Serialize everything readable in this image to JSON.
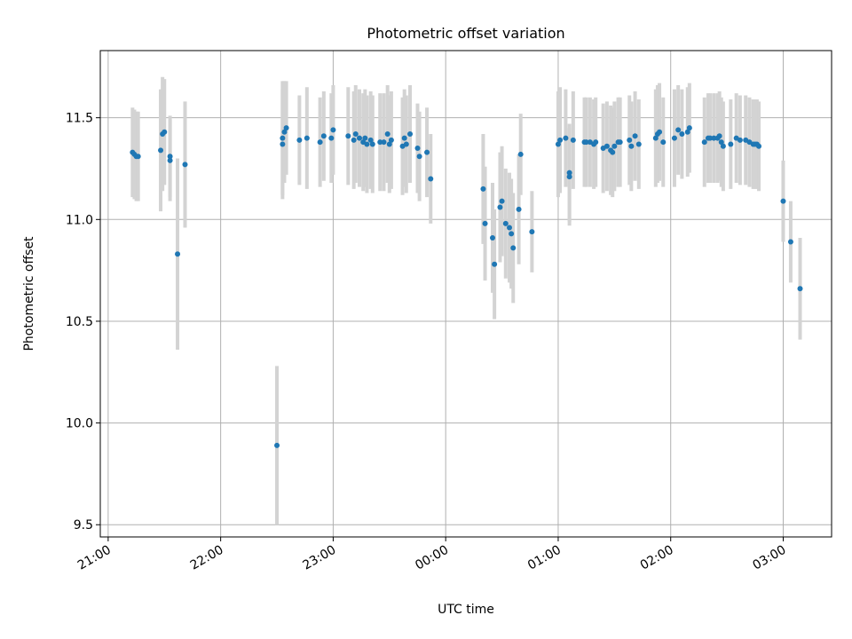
{
  "chart_data": {
    "type": "scatter",
    "title": "Photometric offset variation",
    "xlabel": "UTC time",
    "ylabel": "Photometric offset",
    "xlim": [
      "21:00 -0.06h",
      "03:26"
    ],
    "xlim_hours": [
      -0.07,
      6.43
    ],
    "ylim": [
      9.44,
      11.83
    ],
    "grid": true,
    "x_ticks": [
      "21:00",
      "22:00",
      "23:00",
      "00:00",
      "01:00",
      "02:00",
      "03:00"
    ],
    "y_ticks": [
      "9.5",
      "10.0",
      "10.5",
      "11.0",
      "11.5"
    ],
    "y_tick_values": [
      9.5,
      10.0,
      10.5,
      11.0,
      11.5
    ],
    "colors": {
      "point": "#1f77b4",
      "errorbar": "#d3d3d3",
      "grid": "#b0b0b0"
    },
    "series": [
      {
        "points": [
          {
            "t": "21:13",
            "y": 11.33,
            "e": 0.22
          },
          {
            "t": "21:14",
            "y": 11.32,
            "e": 0.22
          },
          {
            "t": "21:15",
            "y": 11.31,
            "e": 0.22
          },
          {
            "t": "21:16",
            "y": 11.31,
            "e": 0.22
          },
          {
            "t": "21:28",
            "y": 11.34,
            "e": 0.3
          },
          {
            "t": "21:29",
            "y": 11.42,
            "e": 0.28
          },
          {
            "t": "21:30",
            "y": 11.43,
            "e": 0.26
          },
          {
            "t": "21:33",
            "y": 11.31,
            "e": 0.2
          },
          {
            "t": "21:33",
            "y": 11.29,
            "e": 0.2
          },
          {
            "t": "21:37",
            "y": 10.83,
            "e": 0.47
          },
          {
            "t": "21:41",
            "y": 11.27,
            "e": 0.31
          },
          {
            "t": "22:30",
            "y": 9.89,
            "e": 0.39
          },
          {
            "t": "22:33",
            "y": 11.4,
            "e": 0.28
          },
          {
            "t": "22:33",
            "y": 11.37,
            "e": 0.27
          },
          {
            "t": "22:34",
            "y": 11.43,
            "e": 0.25
          },
          {
            "t": "22:35",
            "y": 11.45,
            "e": 0.23
          },
          {
            "t": "22:42",
            "y": 11.39,
            "e": 0.22
          },
          {
            "t": "22:46",
            "y": 11.4,
            "e": 0.25
          },
          {
            "t": "22:53",
            "y": 11.38,
            "e": 0.22
          },
          {
            "t": "22:55",
            "y": 11.41,
            "e": 0.22
          },
          {
            "t": "22:59",
            "y": 11.4,
            "e": 0.22
          },
          {
            "t": "23:00",
            "y": 11.44,
            "e": 0.22
          },
          {
            "t": "23:08",
            "y": 11.41,
            "e": 0.24
          },
          {
            "t": "23:11",
            "y": 11.39,
            "e": 0.24
          },
          {
            "t": "23:12",
            "y": 11.42,
            "e": 0.24
          },
          {
            "t": "23:14",
            "y": 11.4,
            "e": 0.24
          },
          {
            "t": "23:16",
            "y": 11.38,
            "e": 0.24
          },
          {
            "t": "23:17",
            "y": 11.4,
            "e": 0.24
          },
          {
            "t": "23:18",
            "y": 11.37,
            "e": 0.24
          },
          {
            "t": "23:20",
            "y": 11.39,
            "e": 0.24
          },
          {
            "t": "23:21",
            "y": 11.37,
            "e": 0.24
          },
          {
            "t": "23:25",
            "y": 11.38,
            "e": 0.24
          },
          {
            "t": "23:27",
            "y": 11.38,
            "e": 0.24
          },
          {
            "t": "23:29",
            "y": 11.42,
            "e": 0.24
          },
          {
            "t": "23:30",
            "y": 11.37,
            "e": 0.24
          },
          {
            "t": "23:31",
            "y": 11.39,
            "e": 0.24
          },
          {
            "t": "23:37",
            "y": 11.36,
            "e": 0.24
          },
          {
            "t": "23:38",
            "y": 11.4,
            "e": 0.24
          },
          {
            "t": "23:39",
            "y": 11.37,
            "e": 0.24
          },
          {
            "t": "23:41",
            "y": 11.42,
            "e": 0.24
          },
          {
            "t": "23:45",
            "y": 11.35,
            "e": 0.22
          },
          {
            "t": "23:46",
            "y": 11.31,
            "e": 0.22
          },
          {
            "t": "23:50",
            "y": 11.33,
            "e": 0.22
          },
          {
            "t": "23:52",
            "y": 11.2,
            "e": 0.22
          },
          {
            "t": "00:20",
            "y": 11.15,
            "e": 0.27
          },
          {
            "t": "00:21",
            "y": 10.98,
            "e": 0.28
          },
          {
            "t": "00:25",
            "y": 10.91,
            "e": 0.27
          },
          {
            "t": "00:26",
            "y": 10.78,
            "e": 0.27
          },
          {
            "t": "00:29",
            "y": 11.06,
            "e": 0.27
          },
          {
            "t": "00:30",
            "y": 11.09,
            "e": 0.27
          },
          {
            "t": "00:32",
            "y": 10.98,
            "e": 0.27
          },
          {
            "t": "00:34",
            "y": 10.96,
            "e": 0.27
          },
          {
            "t": "00:35",
            "y": 10.93,
            "e": 0.27
          },
          {
            "t": "00:36",
            "y": 10.86,
            "e": 0.27
          },
          {
            "t": "00:39",
            "y": 11.05,
            "e": 0.27
          },
          {
            "t": "00:40",
            "y": 11.32,
            "e": 0.2
          },
          {
            "t": "00:46",
            "y": 10.94,
            "e": 0.2
          },
          {
            "t": "01:00",
            "y": 11.37,
            "e": 0.26
          },
          {
            "t": "01:01",
            "y": 11.39,
            "e": 0.26
          },
          {
            "t": "01:04",
            "y": 11.4,
            "e": 0.24
          },
          {
            "t": "01:06",
            "y": 11.23,
            "e": 0.24
          },
          {
            "t": "01:06",
            "y": 11.21,
            "e": 0.24
          },
          {
            "t": "01:08",
            "y": 11.39,
            "e": 0.24
          },
          {
            "t": "01:14",
            "y": 11.38,
            "e": 0.22
          },
          {
            "t": "01:15",
            "y": 11.38,
            "e": 0.22
          },
          {
            "t": "01:17",
            "y": 11.38,
            "e": 0.22
          },
          {
            "t": "01:19",
            "y": 11.37,
            "e": 0.22
          },
          {
            "t": "01:20",
            "y": 11.38,
            "e": 0.22
          },
          {
            "t": "01:24",
            "y": 11.35,
            "e": 0.22
          },
          {
            "t": "01:26",
            "y": 11.36,
            "e": 0.22
          },
          {
            "t": "01:28",
            "y": 11.34,
            "e": 0.22
          },
          {
            "t": "01:29",
            "y": 11.33,
            "e": 0.22
          },
          {
            "t": "01:30",
            "y": 11.36,
            "e": 0.22
          },
          {
            "t": "01:32",
            "y": 11.38,
            "e": 0.22
          },
          {
            "t": "01:33",
            "y": 11.38,
            "e": 0.22
          },
          {
            "t": "01:38",
            "y": 11.39,
            "e": 0.22
          },
          {
            "t": "01:39",
            "y": 11.36,
            "e": 0.22
          },
          {
            "t": "01:41",
            "y": 11.41,
            "e": 0.22
          },
          {
            "t": "01:43",
            "y": 11.37,
            "e": 0.22
          },
          {
            "t": "01:52",
            "y": 11.4,
            "e": 0.24
          },
          {
            "t": "01:53",
            "y": 11.42,
            "e": 0.24
          },
          {
            "t": "01:54",
            "y": 11.43,
            "e": 0.24
          },
          {
            "t": "01:56",
            "y": 11.38,
            "e": 0.22
          },
          {
            "t": "02:02",
            "y": 11.4,
            "e": 0.24
          },
          {
            "t": "02:04",
            "y": 11.44,
            "e": 0.22
          },
          {
            "t": "02:06",
            "y": 11.42,
            "e": 0.22
          },
          {
            "t": "02:09",
            "y": 11.43,
            "e": 0.22
          },
          {
            "t": "02:10",
            "y": 11.45,
            "e": 0.22
          },
          {
            "t": "02:18",
            "y": 11.38,
            "e": 0.22
          },
          {
            "t": "02:20",
            "y": 11.4,
            "e": 0.22
          },
          {
            "t": "02:21",
            "y": 11.4,
            "e": 0.22
          },
          {
            "t": "02:23",
            "y": 11.4,
            "e": 0.22
          },
          {
            "t": "02:25",
            "y": 11.4,
            "e": 0.22
          },
          {
            "t": "02:26",
            "y": 11.41,
            "e": 0.22
          },
          {
            "t": "02:27",
            "y": 11.38,
            "e": 0.22
          },
          {
            "t": "02:28",
            "y": 11.36,
            "e": 0.22
          },
          {
            "t": "02:32",
            "y": 11.37,
            "e": 0.22
          },
          {
            "t": "02:35",
            "y": 11.4,
            "e": 0.22
          },
          {
            "t": "02:37",
            "y": 11.39,
            "e": 0.22
          },
          {
            "t": "02:40",
            "y": 11.39,
            "e": 0.22
          },
          {
            "t": "02:42",
            "y": 11.38,
            "e": 0.22
          },
          {
            "t": "02:44",
            "y": 11.37,
            "e": 0.22
          },
          {
            "t": "02:45",
            "y": 11.37,
            "e": 0.22
          },
          {
            "t": "02:46",
            "y": 11.37,
            "e": 0.22
          },
          {
            "t": "02:47",
            "y": 11.36,
            "e": 0.22
          },
          {
            "t": "03:00",
            "y": 11.09,
            "e": 0.2
          },
          {
            "t": "03:04",
            "y": 10.89,
            "e": 0.2
          },
          {
            "t": "03:09",
            "y": 10.66,
            "e": 0.25
          }
        ]
      }
    ]
  }
}
